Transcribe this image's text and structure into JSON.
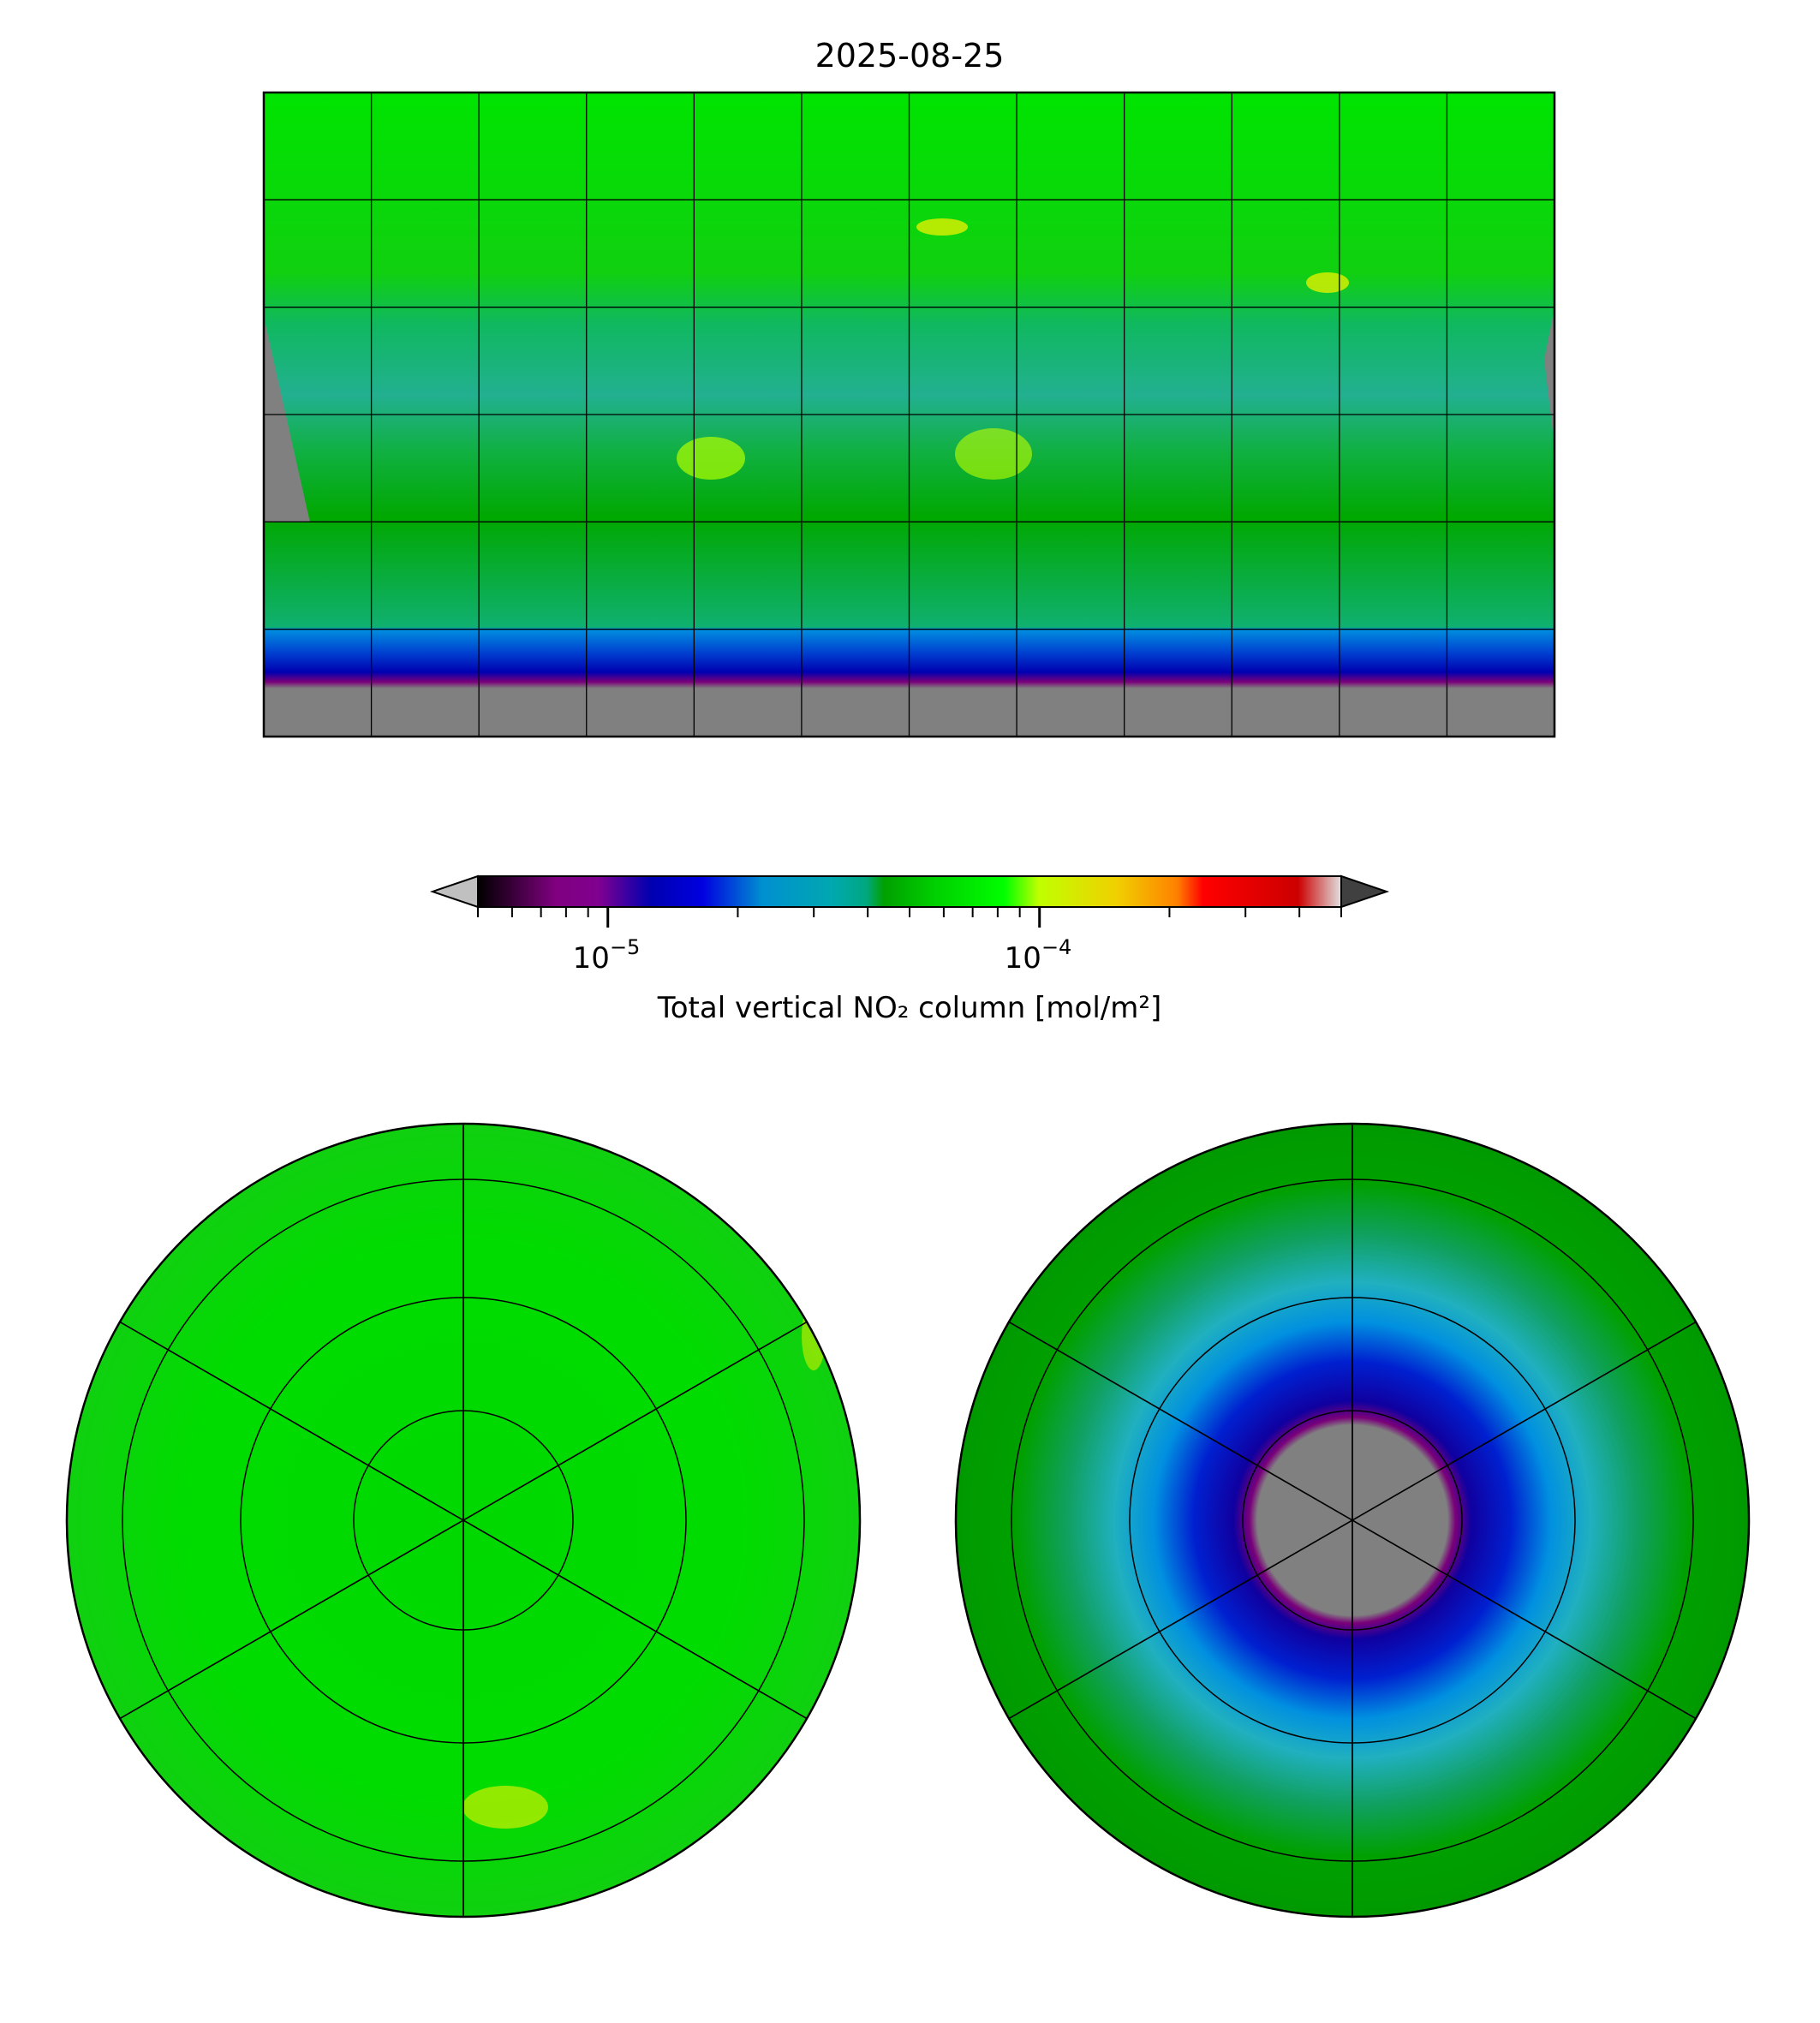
{
  "title": "2025-08-25",
  "colors": {
    "north": "#00e000",
    "tropics": "#22b48a",
    "south_mid": "#00aa00",
    "south_band_light": "#0099dd",
    "south_band_blue": "#0000cc",
    "south_band_purple": "#7a007a",
    "missing": "#808080"
  },
  "chart_data": {
    "type": "heatmap",
    "title": "2025-08-25",
    "variable": "Total vertical NO₂ column",
    "colorbar": {
      "label": "Total vertical NO₂ column [mol/m²]",
      "scale": "log",
      "range": [
        5e-06,
        0.0005
      ],
      "major_ticks": [
        1e-05,
        0.0001
      ],
      "major_tick_labels": [
        "10",
        "10"
      ],
      "major_tick_exponents": [
        "−5",
        "−4"
      ],
      "extend": "both",
      "under_color": "#c0c0c0",
      "over_color": "#404040",
      "colormap_stops": [
        "#000000",
        "#800080",
        "#0000cc",
        "#00a0d0",
        "#00a060",
        "#00a000",
        "#00e000",
        "#b0ff00",
        "#f0e000",
        "#ffa000",
        "#ff0000",
        "#cc0000",
        "#e0e0e0"
      ]
    },
    "panels": [
      "global (lat/lon)",
      "north polar",
      "south polar"
    ],
    "graticule_step_deg": 30
  }
}
